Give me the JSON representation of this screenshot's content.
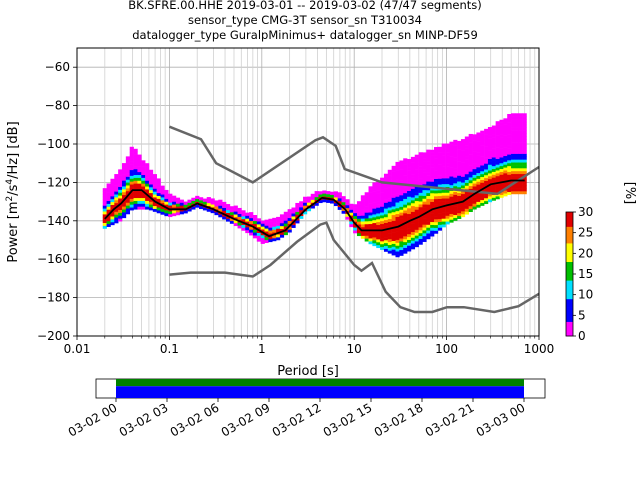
{
  "title_lines": [
    "BK.SFRE.00.HHE   2019-03-01 -- 2019-03-02  (47/47 segments)",
    "sensor_type CMG-3T sensor_sn T310034",
    "datalogger_type GuralpMinimus+ datalogger_sn MINP-DF59"
  ],
  "chart_data": [
    {
      "type": "heatmap",
      "title": "BK.SFRE.00.HHE   2019-03-01 -- 2019-03-02  (47/47 segments)",
      "subtitle": "sensor_type CMG-3T sensor_sn T310034 / datalogger_type GuralpMinimus+ datalogger_sn MINP-DF59",
      "xlabel": "Period [s]",
      "ylabel": "Power [m²/s⁴/Hz] [dB]",
      "x_scale": "log",
      "xlim": [
        0.01,
        1000
      ],
      "ylim": [
        -200,
        -50
      ],
      "x_ticks": [
        0.01,
        0.1,
        1,
        10,
        100,
        1000
      ],
      "x_tick_labels": [
        "0.01",
        "0.1",
        "1",
        "10",
        "100",
        "1000"
      ],
      "y_ticks": [
        -200,
        -180,
        -160,
        -140,
        -120,
        -100,
        -80,
        -60
      ],
      "y_tick_labels": [
        "−200",
        "−180",
        "−160",
        "−140",
        "−120",
        "−100",
        "−80",
        "−60"
      ],
      "grid": true,
      "colorbar": {
        "label": "[%]",
        "min": 0,
        "max": 30,
        "ticks": [
          0,
          5,
          10,
          15,
          20,
          25,
          30
        ],
        "tick_labels": [
          "0",
          "5",
          "10",
          "15",
          "20",
          "25",
          "30"
        ],
        "colors": [
          "#ffffff",
          "#ff00ff",
          "#0000ff",
          "#00e0ff",
          "#00c000",
          "#ffff00",
          "#ff8000",
          "#e00000"
        ]
      },
      "series": [
        {
          "role": "mean",
          "color": "#000000",
          "x": [
            0.02,
            0.025,
            0.03,
            0.04,
            0.05,
            0.07,
            0.1,
            0.15,
            0.2,
            0.3,
            0.5,
            0.8,
            1.2,
            1.8,
            3,
            4.5,
            6,
            8,
            10,
            12,
            15,
            20,
            30,
            40,
            50,
            70,
            100,
            150,
            200,
            300,
            500,
            700
          ],
          "y": [
            -139,
            -134,
            -131,
            -124,
            -124,
            -130,
            -134,
            -134,
            -131,
            -134,
            -139,
            -143,
            -148,
            -145,
            -134,
            -128,
            -129,
            -134,
            -141,
            -145,
            -145,
            -145,
            -143,
            -140,
            -138,
            -134,
            -132,
            -130,
            -126,
            -121,
            -119,
            -119
          ]
        },
        {
          "role": "NHNM",
          "color": "#666666",
          "x": [
            0.1,
            0.22,
            0.32,
            0.8,
            3.8,
            4.6,
            6.3,
            7.9,
            15.4,
            20,
            354.8,
            1000
          ],
          "y": [
            -91,
            -97.5,
            -110,
            -120,
            -98,
            -96.5,
            -101,
            -113,
            -118,
            -120,
            -126,
            -112
          ]
        },
        {
          "role": "NLNM",
          "color": "#666666",
          "x": [
            0.1,
            0.17,
            0.4,
            0.8,
            1.24,
            2.4,
            4.3,
            5,
            6,
            10,
            12,
            15.6,
            21.9,
            31.6,
            45,
            70,
            101,
            154,
            328,
            600,
            1000
          ],
          "y": [
            -168,
            -167,
            -167,
            -169,
            -163,
            -151,
            -142,
            -141,
            -150,
            -163,
            -166,
            -162,
            -177,
            -185,
            -187.5,
            -187.5,
            -185,
            -185,
            -187.5,
            -184.5,
            -178
          ]
        }
      ],
      "percentiles": {
        "period": [
          0.02,
          0.03,
          0.04,
          0.06,
          0.1,
          0.15,
          0.2,
          0.3,
          0.5,
          0.8,
          1,
          1.5,
          2,
          3,
          4.5,
          6,
          8,
          10,
          15,
          20,
          30,
          50,
          80,
          100,
          150,
          200,
          300,
          500,
          700
        ],
        "p05": [
          -144,
          -140,
          -134,
          -134,
          -138,
          -136,
          -133,
          -136,
          -142,
          -148,
          -152,
          -150,
          -146,
          -136,
          -130,
          -131,
          -137,
          -146,
          -152,
          -155,
          -159,
          -153,
          -146,
          -142,
          -138,
          -134,
          -130,
          -126,
          -126
        ],
        "p95": [
          -124,
          -114,
          -102,
          -112,
          -127,
          -130,
          -128,
          -129,
          -133,
          -137,
          -140,
          -139,
          -135,
          -128,
          -125,
          -125,
          -128,
          -133,
          -123,
          -118,
          -110,
          -106,
          -102,
          -100,
          -98,
          -95,
          -92,
          -85,
          -85
        ]
      }
    },
    {
      "type": "bar",
      "role": "data-coverage",
      "x_tick_labels": [
        "03-02 00",
        "03-02 03",
        "03-02 06",
        "03-02 09",
        "03-02 12",
        "03-02 15",
        "03-02 18",
        "03-02 21",
        "03-03 00"
      ],
      "series": [
        {
          "color": "#008000",
          "start": "03-02 00",
          "end": "03-03 00"
        },
        {
          "color": "#0000ff",
          "start": "03-02 00",
          "end": "03-03 00"
        }
      ]
    }
  ]
}
